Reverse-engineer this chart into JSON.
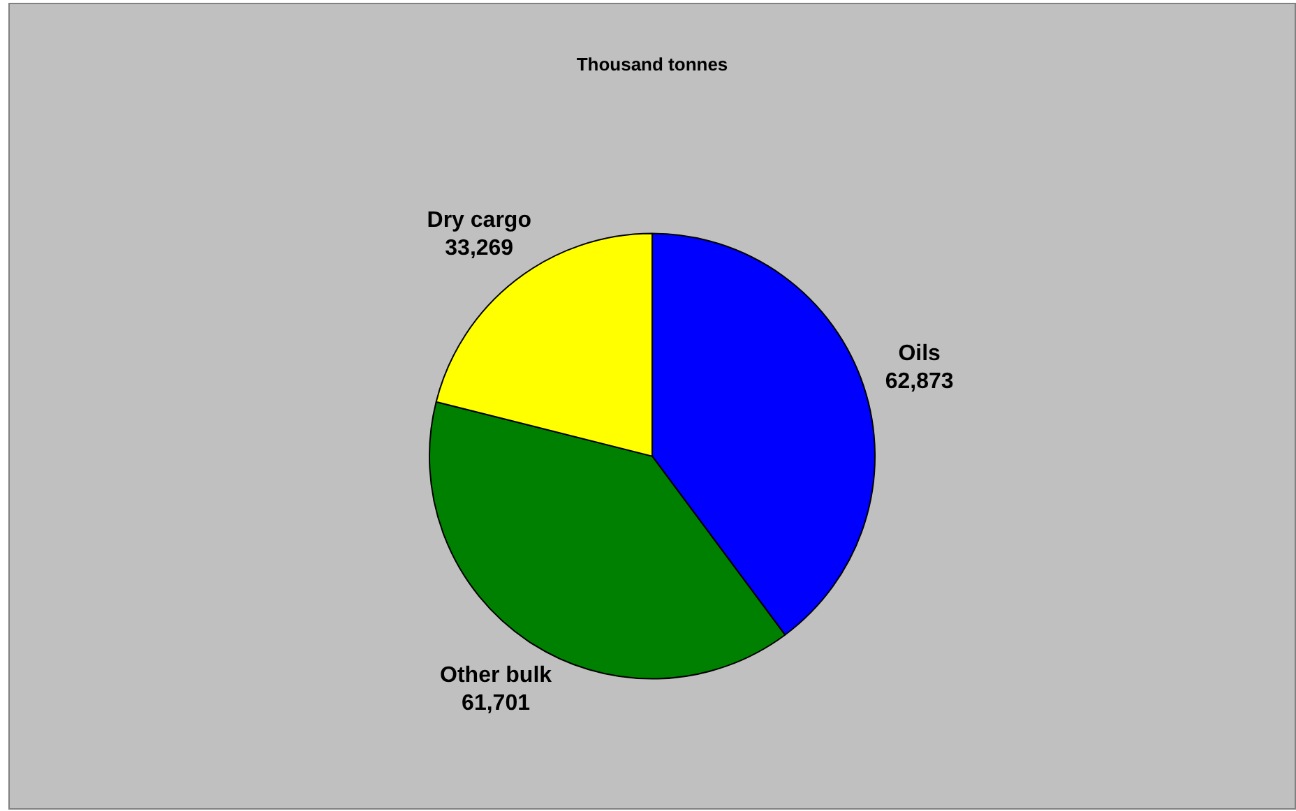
{
  "chart_data": {
    "type": "pie",
    "title": "Thousand tonnes",
    "categories": [
      "Oils",
      "Other bulk",
      "Dry cargo"
    ],
    "values": [
      62873,
      61701,
      33269
    ],
    "colors": [
      "#0000ff",
      "#008000",
      "#ffff00"
    ],
    "value_labels": [
      "62,873",
      "61,701",
      "33,269"
    ],
    "legend": false
  }
}
